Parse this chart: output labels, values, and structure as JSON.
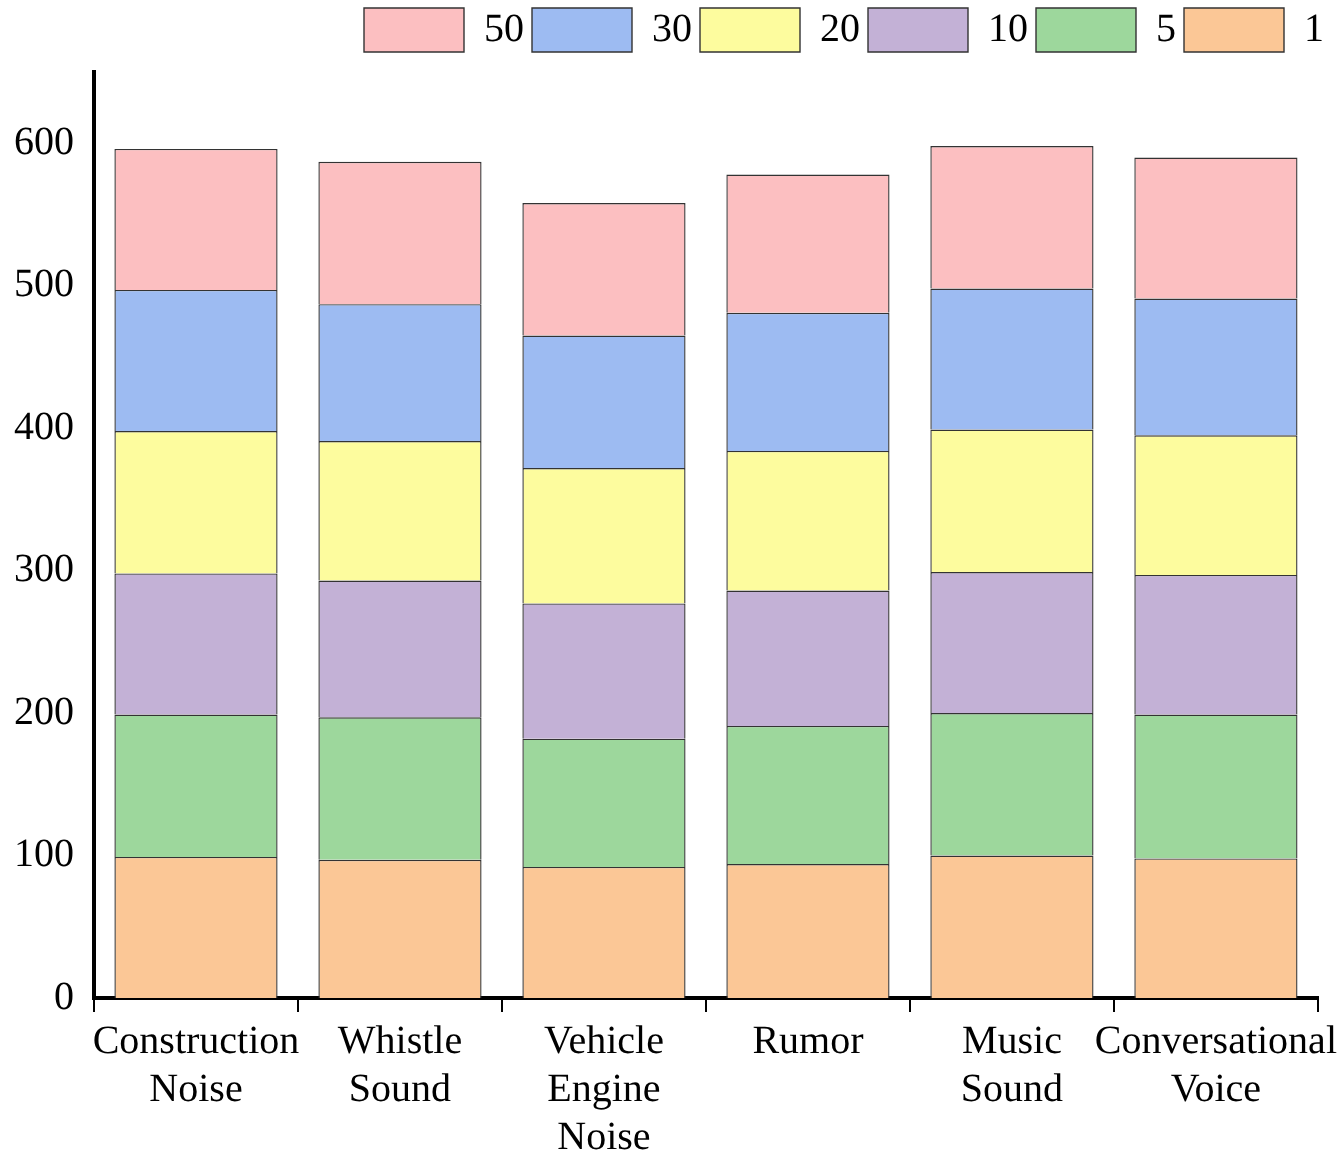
{
  "chart_data": {
    "type": "bar",
    "stacked": true,
    "categories": [
      "Construction Noise",
      "Whistle Sound",
      "Vehicle Engine Noise",
      "Rumor",
      "Music Sound",
      "Conversational Voice"
    ],
    "series": [
      {
        "name": "1",
        "color": "#fbc796",
        "values": [
          99,
          97,
          92,
          94,
          100,
          98
        ]
      },
      {
        "name": "5",
        "color": "#9dd79c",
        "values": [
          100,
          100,
          90,
          97,
          100,
          101
        ]
      },
      {
        "name": "10",
        "color": "#c3b1d6",
        "values": [
          99,
          96,
          95,
          95,
          99,
          98
        ]
      },
      {
        "name": "20",
        "color": "#fdfc9e",
        "values": [
          100,
          98,
          95,
          98,
          100,
          98
        ]
      },
      {
        "name": "30",
        "color": "#9dbbf2",
        "values": [
          99,
          96,
          93,
          97,
          99,
          96
        ]
      },
      {
        "name": "50",
        "color": "#fcbfc1",
        "values": [
          99,
          100,
          93,
          97,
          100,
          99
        ]
      }
    ],
    "ylim": [
      0,
      650
    ],
    "yticks": [
      0,
      100,
      200,
      300,
      400,
      500,
      600
    ],
    "grid": false,
    "legend": "top right"
  }
}
